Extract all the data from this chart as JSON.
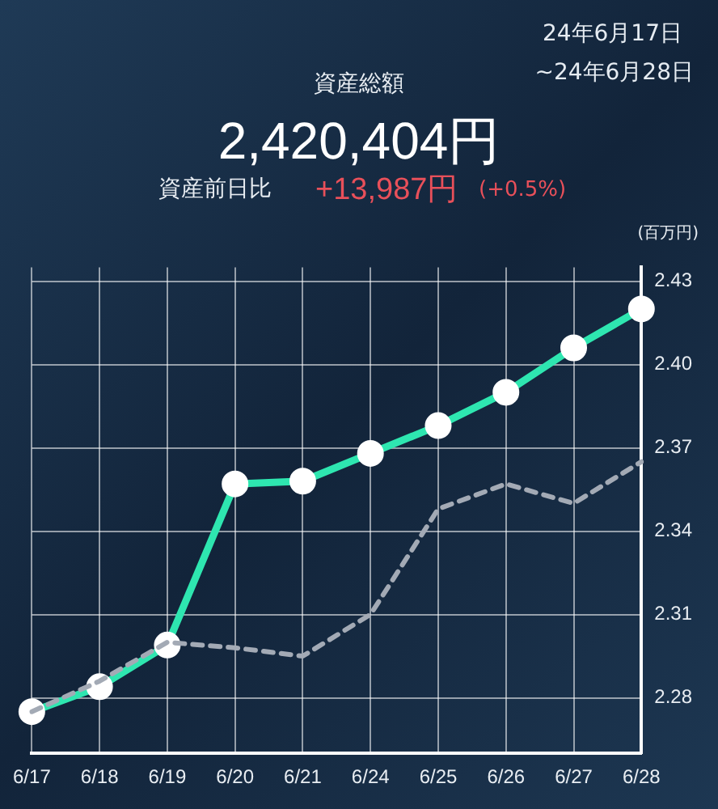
{
  "chart_data": {
    "type": "line",
    "title": "資産総額",
    "subtitle": "2,420,404円",
    "annotations": [
      "24年6月17日",
      "~24年6月28日",
      "資産前日比",
      "+13,987円",
      "(+0.5%)"
    ],
    "ylabel": "(百万円)",
    "categories": [
      "6/17",
      "6/18",
      "6/19",
      "6/20",
      "6/21",
      "6/24",
      "6/25",
      "6/26",
      "6/27",
      "6/28"
    ],
    "series": [
      {
        "color": "#2ee6b0",
        "marker": "circle",
        "line_style": "solid",
        "values": [
          2.275,
          2.284,
          2.299,
          2.357,
          2.358,
          2.368,
          2.378,
          2.39,
          2.406,
          2.42
        ]
      },
      {
        "color": "#a3aab5",
        "marker": "none",
        "line_style": "dashed",
        "values": [
          2.275,
          2.286,
          2.3,
          2.298,
          2.295,
          2.31,
          2.348,
          2.357,
          2.35,
          2.365
        ]
      }
    ],
    "ylim": [
      2.26,
      2.435
    ],
    "yticks": [
      2.28,
      2.31,
      2.34,
      2.37,
      {
        "value": 2.4,
        "label": "2.40"
      },
      2.43
    ],
    "grid": true,
    "legend": false
  }
}
